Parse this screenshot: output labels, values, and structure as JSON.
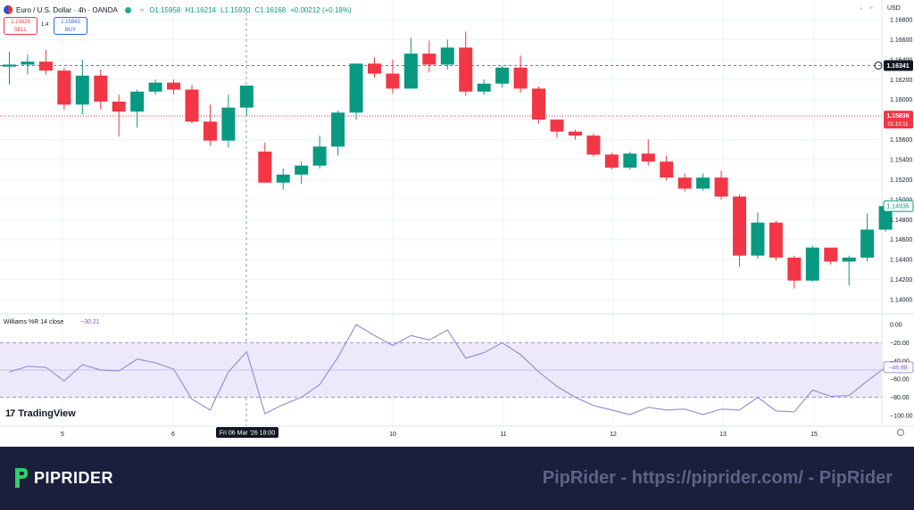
{
  "header": {
    "symbol": "Euro / U.S. Dollar · 4h · OANDA",
    "open": "O1.15958",
    "high": "H1.16214",
    "low": "L1.15930",
    "close": "C1.16168",
    "change": "+0.00212 (+0.18%)"
  },
  "trade": {
    "sell_price": "1.15829",
    "sell_label": "SELL",
    "spread": "1.4",
    "buy_price": "1.15843",
    "buy_label": "BUY"
  },
  "currency": "USD",
  "indicator": {
    "name": "Williams %R 14 close",
    "value": "−30.21",
    "current_label": "−46.88"
  },
  "price_labels": {
    "last": "1.16341",
    "bid": "1.15836",
    "countdown": "01:10:11",
    "current": "1.14935"
  },
  "crosshair_time": "Fri 06 Mar '26   18:00",
  "logo_text": "TradingView",
  "footer": {
    "brand": "PIPRIDER",
    "text": "PipRider - https://piprider.com/ - PipRider"
  },
  "colors": {
    "up": "#089981",
    "down": "#f23645",
    "wr_line": "#9c8fd6",
    "band": "#ede9fb"
  },
  "chart_data": {
    "type": "candlestick",
    "price_axis": {
      "ylim": [
        1.138,
        1.168
      ],
      "ticks": [
        "1.16800",
        "1.16600",
        "1.16400",
        "1.16200",
        "1.16000",
        "1.15800",
        "1.15600",
        "1.15400",
        "1.15200",
        "1.15000",
        "1.14800",
        "1.14600",
        "1.14400",
        "1.14200",
        "1.14000"
      ]
    },
    "x_ticks": [
      {
        "label": "5",
        "i": 3
      },
      {
        "label": "6",
        "i": 9
      },
      {
        "label": "10",
        "i": 21
      },
      {
        "label": "11",
        "i": 27
      },
      {
        "label": "12",
        "i": 33
      },
      {
        "label": "13",
        "i": 39
      },
      {
        "label": "15",
        "i": 44
      }
    ],
    "candles": [
      [
        1.1633,
        1.1635,
        1.1615,
        1.1648
      ],
      [
        1.1635,
        1.1638,
        1.1625,
        1.1645
      ],
      [
        1.1638,
        1.1629,
        1.1625,
        1.165
      ],
      [
        1.1629,
        1.1595,
        1.159,
        1.1632
      ],
      [
        1.1595,
        1.1624,
        1.1585,
        1.164
      ],
      [
        1.1624,
        1.1598,
        1.159,
        1.163
      ],
      [
        1.1598,
        1.1588,
        1.1563,
        1.1605
      ],
      [
        1.1588,
        1.1608,
        1.1572,
        1.161
      ],
      [
        1.1608,
        1.1617,
        1.1605,
        1.162
      ],
      [
        1.1617,
        1.161,
        1.1605,
        1.162
      ],
      [
        1.161,
        1.1578,
        1.1576,
        1.1615
      ],
      [
        1.1578,
        1.1559,
        1.1554,
        1.1595
      ],
      [
        1.1559,
        1.1592,
        1.1552,
        1.1605
      ],
      [
        1.1592,
        1.1614,
        1.1584,
        1.1614
      ],
      [
        1.1548,
        1.1517,
        1.1517,
        1.1557
      ],
      [
        1.1517,
        1.1525,
        1.151,
        1.1531
      ],
      [
        1.1525,
        1.1534,
        1.1516,
        1.1538
      ],
      [
        1.1534,
        1.1553,
        1.1531,
        1.1564
      ],
      [
        1.1553,
        1.1587,
        1.1544,
        1.1589
      ],
      [
        1.1587,
        1.1636,
        1.158,
        1.1636
      ],
      [
        1.1636,
        1.1626,
        1.1622,
        1.1642
      ],
      [
        1.1626,
        1.1611,
        1.1606,
        1.164
      ],
      [
        1.1611,
        1.1646,
        1.1611,
        1.1662
      ],
      [
        1.1646,
        1.1635,
        1.1627,
        1.1659
      ],
      [
        1.1635,
        1.1652,
        1.163,
        1.166
      ],
      [
        1.1652,
        1.1608,
        1.1604,
        1.1668
      ],
      [
        1.1608,
        1.1616,
        1.1605,
        1.162
      ],
      [
        1.1616,
        1.1632,
        1.1612,
        1.1634
      ],
      [
        1.1632,
        1.1611,
        1.1607,
        1.1644
      ],
      [
        1.1611,
        1.158,
        1.1576,
        1.1613
      ],
      [
        1.158,
        1.1568,
        1.1562,
        1.158
      ],
      [
        1.1568,
        1.1564,
        1.156,
        1.157
      ],
      [
        1.1564,
        1.1545,
        1.1543,
        1.1566
      ],
      [
        1.1545,
        1.1532,
        1.153,
        1.1547
      ],
      [
        1.1532,
        1.1546,
        1.153,
        1.1548
      ],
      [
        1.1546,
        1.1538,
        1.1534,
        1.156
      ],
      [
        1.1538,
        1.1522,
        1.1519,
        1.1544
      ],
      [
        1.1522,
        1.1511,
        1.1508,
        1.1526
      ],
      [
        1.1511,
        1.1522,
        1.1509,
        1.1526
      ],
      [
        1.1522,
        1.1503,
        1.15,
        1.1529
      ],
      [
        1.1503,
        1.1444,
        1.1433,
        1.1505
      ],
      [
        1.1444,
        1.1477,
        1.1441,
        1.1487
      ],
      [
        1.1477,
        1.1442,
        1.1439,
        1.1479
      ],
      [
        1.1442,
        1.1419,
        1.1411,
        1.1444
      ],
      [
        1.1419,
        1.1452,
        1.1418,
        1.1454
      ],
      [
        1.1452,
        1.1438,
        1.1435,
        1.1452
      ],
      [
        1.1438,
        1.1442,
        1.1414,
        1.1444
      ],
      [
        1.1442,
        1.147,
        1.1438,
        1.1486
      ],
      [
        1.147,
        1.14935,
        1.1468,
        1.1496
      ]
    ],
    "indicator_axis": {
      "ylim": [
        -105,
        3
      ],
      "ticks": [
        "0.00",
        "−20.00",
        "−40.00",
        "−60.00",
        "−80.00",
        "−100.00"
      ],
      "upper_band": -20,
      "lower_band": -80
    },
    "williams_r": [
      -52,
      -46,
      -47,
      -62,
      -44,
      -50,
      -51,
      -38,
      -42,
      -49,
      -82,
      -94,
      -52,
      -30,
      -98,
      -88,
      -80,
      -66,
      -36,
      0,
      -12,
      -23,
      -12,
      -17,
      -6,
      -37,
      -31,
      -20,
      -33,
      -52,
      -68,
      -80,
      -89,
      -94,
      -99,
      -91,
      -94,
      -93,
      -99,
      -93,
      -94,
      -80,
      -95,
      -96,
      -72,
      -79,
      -78,
      -62,
      -47
    ]
  }
}
